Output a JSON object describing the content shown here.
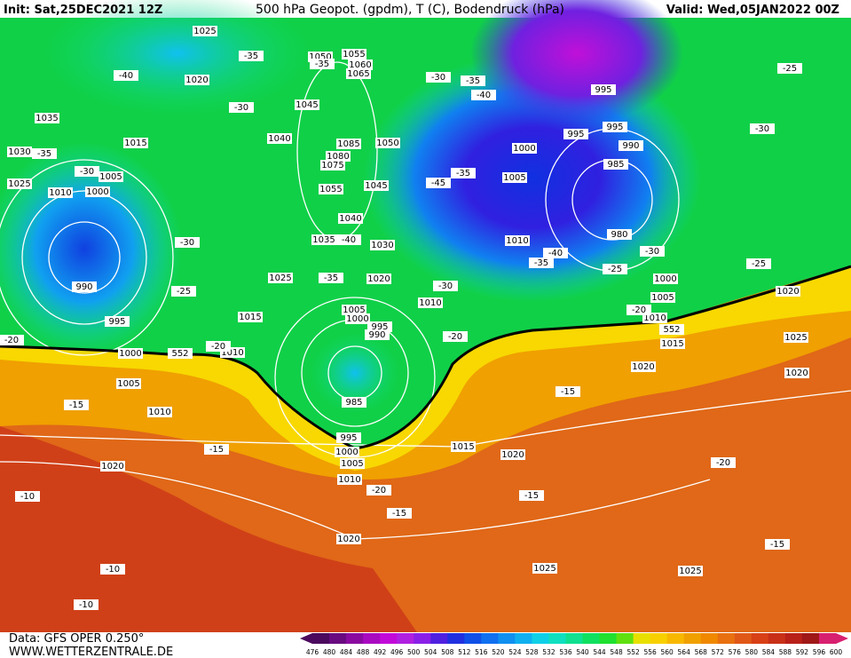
{
  "header": {
    "init": "Init: Sat,25DEC2021 12Z",
    "title": "500 hPa Geopot. (gpdm), T (C), Bodendruck (hPa)",
    "valid": "Valid: Wed,05JAN2022 00Z"
  },
  "footer": {
    "source": "Data: GFS OPER 0.250°",
    "site": "WWW.WETTERZENTRALE.DE"
  },
  "colorbar": {
    "levels": [
      476,
      480,
      484,
      488,
      492,
      496,
      500,
      504,
      508,
      512,
      516,
      520,
      524,
      528,
      532,
      536,
      540,
      544,
      548,
      552,
      556,
      560,
      564,
      568,
      572,
      576,
      580,
      584,
      588,
      592,
      596,
      600
    ],
    "colors": [
      "#4b0a5e",
      "#6a0a80",
      "#8a0aa0",
      "#a80ac0",
      "#c20ad8",
      "#b020e0",
      "#8a20e8",
      "#5020e0",
      "#2030e0",
      "#1050e8",
      "#1070f0",
      "#1090f0",
      "#10b0f0",
      "#10d0e8",
      "#10e0c0",
      "#10e090",
      "#10e060",
      "#20e030",
      "#60e010",
      "#e8e000",
      "#f8d000",
      "#f8b800",
      "#f0a000",
      "#f08800",
      "#e87010",
      "#e05818",
      "#d84018",
      "#c83018",
      "#b82018",
      "#a01818",
      "#d82070"
    ]
  },
  "map": {
    "isobar_labels": [
      1025,
      1020,
      1035,
      1015,
      1030,
      1025,
      1005,
      1010,
      1000,
      990,
      995,
      1000,
      1005,
      1010,
      1020,
      1020,
      1025,
      1025,
      1015,
      1020,
      1020,
      1020,
      1025,
      1020,
      1015,
      1010,
      1005,
      1000,
      980,
      985,
      990,
      995,
      995,
      995,
      1000,
      1005,
      1010,
      1010,
      1020,
      1025,
      1015,
      1010,
      1005,
      1000,
      995,
      990,
      985,
      995,
      1000,
      1005,
      1010,
      1030,
      1035,
      1040,
      1045,
      1050,
      1055,
      1085,
      1080,
      1075,
      1065,
      1060,
      1055,
      1050,
      1045,
      1040
    ],
    "temperature_labels": [
      -40,
      -35,
      -30,
      -35,
      -30,
      -30,
      -25,
      -20,
      -20,
      -15,
      -15,
      -10,
      -10,
      -10,
      -20,
      -15,
      -15,
      -15,
      -20,
      -15,
      -25,
      -30,
      -25,
      -30,
      -35,
      -40,
      -25,
      -20,
      -20,
      -30,
      -35,
      -40,
      -35,
      -45,
      -40,
      -35,
      -30,
      -35
    ],
    "height_labels": [
      552,
      552
    ]
  }
}
